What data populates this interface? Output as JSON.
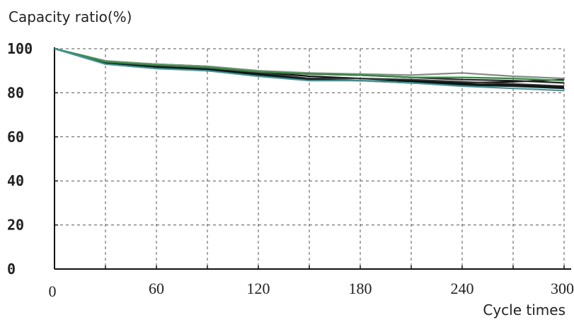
{
  "chart_data": {
    "type": "line",
    "title": "",
    "ylabel": "Capacity ratio(%)",
    "xlabel": "Cycle times",
    "xlim": [
      0,
      300
    ],
    "ylim": [
      0,
      100
    ],
    "x_ticks": [
      0,
      60,
      120,
      180,
      240,
      300
    ],
    "y_ticks": [
      0,
      20,
      40,
      60,
      80,
      100
    ],
    "x_grid": [
      0,
      30,
      60,
      90,
      120,
      150,
      180,
      210,
      240,
      270,
      300
    ],
    "grid": true,
    "legend": "none",
    "series": [
      {
        "color": "#111111",
        "x": [
          0,
          30,
          60,
          90,
          120,
          150,
          180,
          210,
          240,
          270,
          300
        ],
        "y": [
          100,
          94.5,
          92.5,
          91.5,
          89.5,
          87.5,
          86.5,
          85.5,
          84.5,
          85,
          86
        ]
      },
      {
        "color": "#222222",
        "x": [
          0,
          30,
          60,
          90,
          120,
          150,
          180,
          210,
          240,
          270,
          300
        ],
        "y": [
          100,
          94,
          93,
          92,
          90,
          88.5,
          88,
          87,
          86,
          85.5,
          84.5
        ]
      },
      {
        "color": "#333333",
        "x": [
          0,
          30,
          60,
          90,
          120,
          150,
          180,
          210,
          240,
          270,
          300
        ],
        "y": [
          100,
          94,
          92,
          91,
          89,
          86.5,
          86.5,
          86,
          85,
          84,
          83
        ]
      },
      {
        "color": "#111111",
        "x": [
          0,
          30,
          60,
          90,
          120,
          150,
          180,
          210,
          240,
          270,
          300
        ],
        "y": [
          100,
          93.5,
          92,
          90.5,
          88.5,
          86,
          85.5,
          85,
          84,
          83.5,
          82.5
        ]
      },
      {
        "color": "#1a1a1a",
        "x": [
          0,
          30,
          60,
          90,
          120,
          150,
          180,
          210,
          240,
          270,
          300
        ],
        "y": [
          100,
          93.5,
          91.5,
          90,
          88,
          86,
          85.5,
          84.5,
          83.5,
          83,
          82
        ]
      },
      {
        "color": "#888888",
        "x": [
          0,
          30,
          60,
          90,
          120,
          150,
          180,
          210,
          240,
          270,
          300
        ],
        "y": [
          100,
          94.5,
          93,
          92,
          90,
          89,
          88.5,
          88,
          89,
          87.5,
          86.5
        ]
      },
      {
        "color": "#2e8b3a",
        "x": [
          0,
          30,
          60,
          90,
          120,
          150,
          180,
          210,
          240,
          270,
          300
        ],
        "y": [
          100,
          94,
          92.5,
          91.5,
          89.5,
          88.5,
          88,
          87,
          87,
          86.5,
          85.5
        ]
      },
      {
        "color": "#3a9a9a",
        "x": [
          0,
          30,
          60,
          90,
          120,
          150,
          180,
          210,
          240,
          270,
          300
        ],
        "y": [
          100,
          93,
          91,
          90,
          87.5,
          85.5,
          85.5,
          84.5,
          83,
          82,
          81
        ]
      }
    ]
  }
}
